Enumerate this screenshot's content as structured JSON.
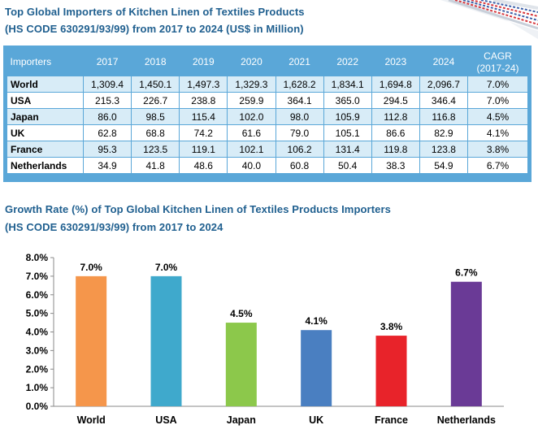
{
  "table": {
    "title_line1": "Top Global Importers of Kitchen Linen of Textiles Products",
    "title_line2": "(HS CODE 630291/93/99) from 2017 to 2024 (US$ in Million)",
    "header": {
      "importers": "Importers",
      "years": [
        "2017",
        "2018",
        "2019",
        "2020",
        "2021",
        "2022",
        "2023",
        "2024"
      ],
      "cagr_line1": "CAGR",
      "cagr_line2": "(2017-24)"
    },
    "rows": [
      {
        "name": "World",
        "values": [
          "1,309.4",
          "1,450.1",
          "1,497.3",
          "1,329.3",
          "1,628.2",
          "1,834.1",
          "1,694.8",
          "2,096.7"
        ],
        "cagr": "7.0%"
      },
      {
        "name": "USA",
        "values": [
          "215.3",
          "226.7",
          "238.8",
          "259.9",
          "364.1",
          "365.0",
          "294.5",
          "346.4"
        ],
        "cagr": "7.0%"
      },
      {
        "name": "Japan",
        "values": [
          "86.0",
          "98.5",
          "115.4",
          "102.0",
          "98.0",
          "105.9",
          "112.8",
          "116.8"
        ],
        "cagr": "4.5%"
      },
      {
        "name": "UK",
        "values": [
          "62.8",
          "68.8",
          "74.2",
          "61.6",
          "79.0",
          "105.1",
          "86.6",
          "82.9"
        ],
        "cagr": "4.1%"
      },
      {
        "name": "France",
        "values": [
          "95.3",
          "123.5",
          "119.1",
          "102.1",
          "106.2",
          "131.4",
          "119.8",
          "123.8"
        ],
        "cagr": "3.8%"
      },
      {
        "name": "Netherlands",
        "values": [
          "34.9",
          "41.8",
          "48.6",
          "40.0",
          "60.8",
          "50.4",
          "38.3",
          "54.9"
        ],
        "cagr": "6.7%"
      }
    ]
  },
  "chart_title_line1": "Growth Rate (%) of Top Global Kitchen Linen of Textiles Products Importers",
  "chart_title_line2": "(HS CODE 630291/93/99) from 2017 to 2024",
  "chart_data": {
    "type": "bar",
    "categories": [
      "World",
      "USA",
      "Japan",
      "UK",
      "France",
      "Netherlands"
    ],
    "values": [
      7.0,
      7.0,
      4.5,
      4.1,
      3.8,
      6.7
    ],
    "data_labels": [
      "7.0%",
      "7.0%",
      "4.5%",
      "4.1%",
      "3.8%",
      "6.7%"
    ],
    "colors": [
      "#f5964b",
      "#3fa9cc",
      "#8cc84b",
      "#4a7fc1",
      "#e8232a",
      "#6a3a96"
    ],
    "yticks": [
      "0.0%",
      "1.0%",
      "2.0%",
      "3.0%",
      "4.0%",
      "5.0%",
      "6.0%",
      "7.0%",
      "8.0%"
    ],
    "ylim": [
      0,
      8
    ],
    "title": "",
    "xlabel": "",
    "ylabel": ""
  },
  "colors": {
    "title": "#1f5f8f",
    "table_header": "#5aa7d8",
    "table_alt_row": "#d8ecf7"
  }
}
